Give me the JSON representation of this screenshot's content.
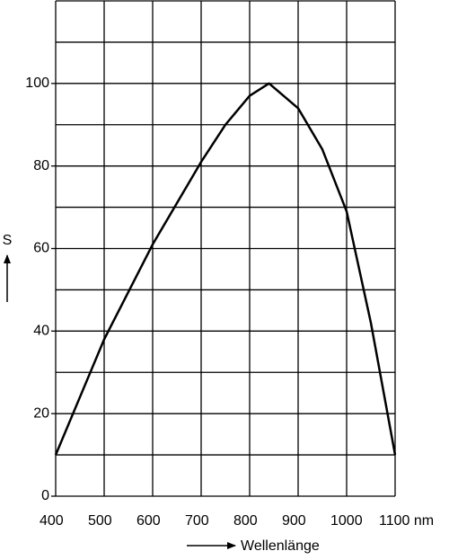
{
  "chart_data": {
    "type": "line",
    "x": [
      400,
      450,
      500,
      600,
      650,
      700,
      750,
      800,
      840,
      900,
      950,
      1000,
      1050,
      1100
    ],
    "values": [
      10,
      24,
      38,
      61,
      71,
      81,
      90,
      97,
      100,
      94,
      84,
      69,
      42,
      10
    ],
    "color": "#000000",
    "xlim": [
      400,
      1100
    ],
    "xticks": [
      400,
      500,
      600,
      700,
      800,
      900,
      1000,
      {
        "value": 1100,
        "label": "1100 nm"
      }
    ],
    "ylim": [
      0,
      120
    ],
    "yticks": [
      0,
      20,
      40,
      60,
      80,
      100
    ],
    "ygrid": [
      0,
      10,
      20,
      30,
      40,
      50,
      60,
      70,
      80,
      90,
      100,
      110,
      120
    ],
    "grid": true,
    "ylabel": "S",
    "xlabel": "Wellenlänge"
  }
}
